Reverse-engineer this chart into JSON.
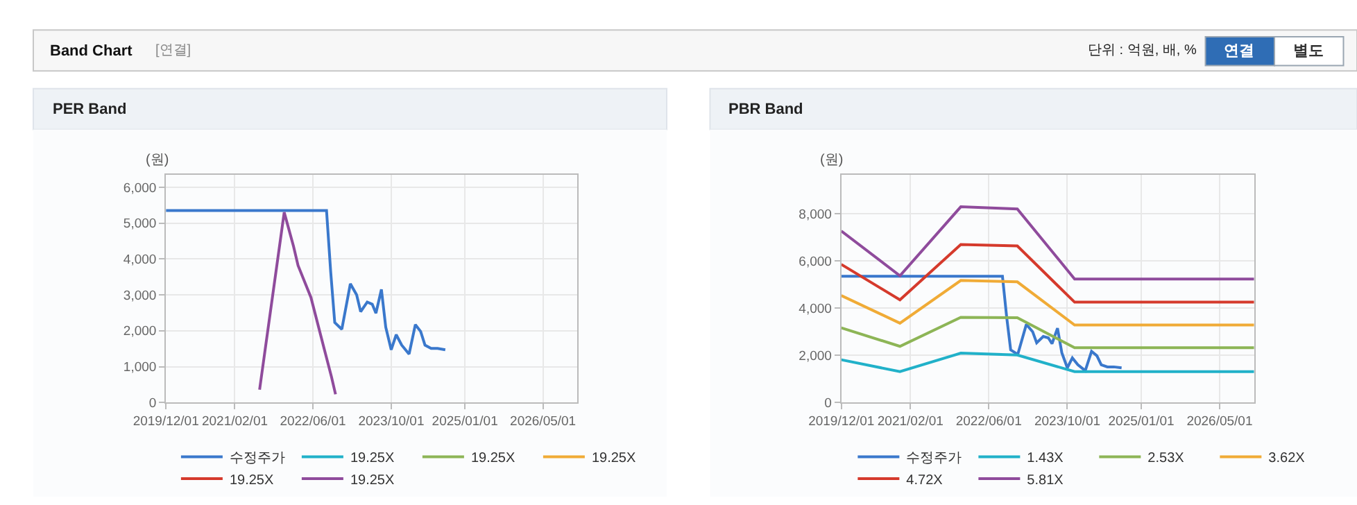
{
  "chart_data": [
    {
      "type": "line",
      "title": "PER Band",
      "ylabel": "(원)",
      "annotations": [
        "Band Chart",
        "[연결]",
        "단위 : 억원, 배, %",
        "연결",
        "별도"
      ],
      "xlim": [
        "2019-12-01",
        "2026-12-01"
      ],
      "xticks": [
        {
          "value": "2019-12-01",
          "label": "2019/12/01"
        },
        {
          "value": "2021-02-01",
          "label": "2021/02/01"
        },
        {
          "value": "2022-06-01",
          "label": "2022/06/01"
        },
        {
          "value": "2023-10-01",
          "label": "2023/10/01"
        },
        {
          "value": "2025-01-01",
          "label": "2025/01/01"
        },
        {
          "value": "2026-05-01",
          "label": "2026/05/01"
        }
      ],
      "ylim": [
        0,
        6350
      ],
      "yticks": [
        0,
        {
          "value": 1000,
          "label": "1,000"
        },
        {
          "value": 2000,
          "label": "2,000"
        },
        {
          "value": 3000,
          "label": "3,000"
        },
        {
          "value": 4000,
          "label": "4,000"
        },
        {
          "value": 5000,
          "label": "5,000"
        },
        {
          "value": 6000,
          "label": "6,000"
        }
      ],
      "grid": true,
      "legend": "bottom",
      "marker": "none",
      "line_style": "solid",
      "series": [
        {
          "name": "수정주가",
          "color": "#3a78cc",
          "x": [
            "2019-12-01",
            "2022-08-25",
            "2022-09-20",
            "2022-10-15",
            "2022-11-28",
            "2023-01-20",
            "2023-02-28",
            "2023-03-25",
            "2023-05-05",
            "2023-06-05",
            "2023-06-28",
            "2023-08-01",
            "2023-08-28",
            "2023-10-01",
            "2023-11-01",
            "2023-12-05",
            "2024-01-20",
            "2024-02-28",
            "2024-04-01",
            "2024-04-28",
            "2024-06-05",
            "2024-07-15",
            "2024-09-01"
          ],
          "values": [
            5350,
            5350,
            3630,
            2230,
            2040,
            3310,
            3000,
            2530,
            2800,
            2740,
            2490,
            3150,
            2100,
            1470,
            1890,
            1600,
            1350,
            2170,
            1980,
            1600,
            1510,
            1510,
            1470
          ]
        },
        {
          "name": "19.25X",
          "color": "#21b1c9"
        },
        {
          "name": "19.25X",
          "color": "#8db556"
        },
        {
          "name": "19.25X",
          "color": "#f0ab36"
        },
        {
          "name": "19.25X",
          "color": "#d53a2c"
        },
        {
          "name": "19.25X",
          "color": "#8f4b9c",
          "x": [
            "2021-07-05",
            "2021-12-05",
            "2022-02-01",
            "2022-03-01",
            "2022-05-20",
            "2022-08-12",
            "2022-09-25",
            "2022-10-20"
          ],
          "values": [
            360,
            5300,
            4350,
            3820,
            2930,
            1470,
            710,
            230
          ]
        }
      ]
    },
    {
      "type": "line",
      "title": "PBR Band",
      "ylabel": "(원)",
      "xlim": [
        "2019-12-01",
        "2026-12-01"
      ],
      "xticks": [
        {
          "value": "2019-12-01",
          "label": "2019/12/01"
        },
        {
          "value": "2021-02-01",
          "label": "2021/02/01"
        },
        {
          "value": "2022-06-01",
          "label": "2022/06/01"
        },
        {
          "value": "2023-10-01",
          "label": "2023/10/01"
        },
        {
          "value": "2025-01-01",
          "label": "2025/01/01"
        },
        {
          "value": "2026-05-01",
          "label": "2026/05/01"
        }
      ],
      "ylim": [
        0,
        9650
      ],
      "yticks": [
        0,
        {
          "value": 2000,
          "label": "2,000"
        },
        {
          "value": 4000,
          "label": "4,000"
        },
        {
          "value": 6000,
          "label": "6,000"
        },
        {
          "value": 8000,
          "label": "8,000"
        }
      ],
      "grid": true,
      "legend": "bottom",
      "marker": "none",
      "line_style": "solid",
      "series": [
        {
          "name": "수정주가",
          "color": "#3a78cc",
          "x": [
            "2019-12-01",
            "2022-08-25",
            "2022-09-20",
            "2022-10-15",
            "2022-11-28",
            "2023-01-20",
            "2023-02-28",
            "2023-03-25",
            "2023-05-05",
            "2023-06-05",
            "2023-06-28",
            "2023-08-01",
            "2023-08-28",
            "2023-10-01",
            "2023-11-01",
            "2023-12-05",
            "2024-01-20",
            "2024-02-28",
            "2024-04-01",
            "2024-04-28",
            "2024-06-05",
            "2024-07-15",
            "2024-09-01"
          ],
          "values": [
            5350,
            5350,
            3630,
            2230,
            2040,
            3310,
            3000,
            2530,
            2800,
            2740,
            2490,
            3150,
            2100,
            1470,
            1890,
            1600,
            1350,
            2170,
            1980,
            1600,
            1510,
            1510,
            1470
          ]
        },
        {
          "name": "1.43X",
          "color": "#21b1c9",
          "x": [
            "2019-12-01",
            "2020-11-28",
            "2021-12-10",
            "2022-11-25",
            "2023-11-15",
            "2026-12-01"
          ],
          "values": [
            1810,
            1310,
            2090,
            2010,
            1310,
            1310
          ]
        },
        {
          "name": "2.53X",
          "color": "#8db556",
          "x": [
            "2019-12-01",
            "2020-11-28",
            "2021-12-10",
            "2022-11-25",
            "2023-11-15",
            "2026-12-01"
          ],
          "values": [
            3160,
            2380,
            3610,
            3590,
            2320,
            2320
          ]
        },
        {
          "name": "3.62X",
          "color": "#f0ab36",
          "x": [
            "2019-12-01",
            "2020-11-28",
            "2021-12-10",
            "2022-11-25",
            "2023-11-15",
            "2026-12-01"
          ],
          "values": [
            4530,
            3360,
            5170,
            5110,
            3280,
            3280
          ]
        },
        {
          "name": "4.72X",
          "color": "#d53a2c",
          "x": [
            "2019-12-01",
            "2020-11-28",
            "2021-12-10",
            "2022-11-25",
            "2023-11-15",
            "2026-12-01"
          ],
          "values": [
            5850,
            4350,
            6690,
            6630,
            4250,
            4250
          ]
        },
        {
          "name": "5.81X",
          "color": "#8f4b9c",
          "x": [
            "2019-12-01",
            "2020-11-28",
            "2021-12-10",
            "2022-11-25",
            "2023-11-15",
            "2026-12-01"
          ],
          "values": [
            7260,
            5370,
            8290,
            8200,
            5230,
            5230
          ]
        }
      ]
    }
  ]
}
